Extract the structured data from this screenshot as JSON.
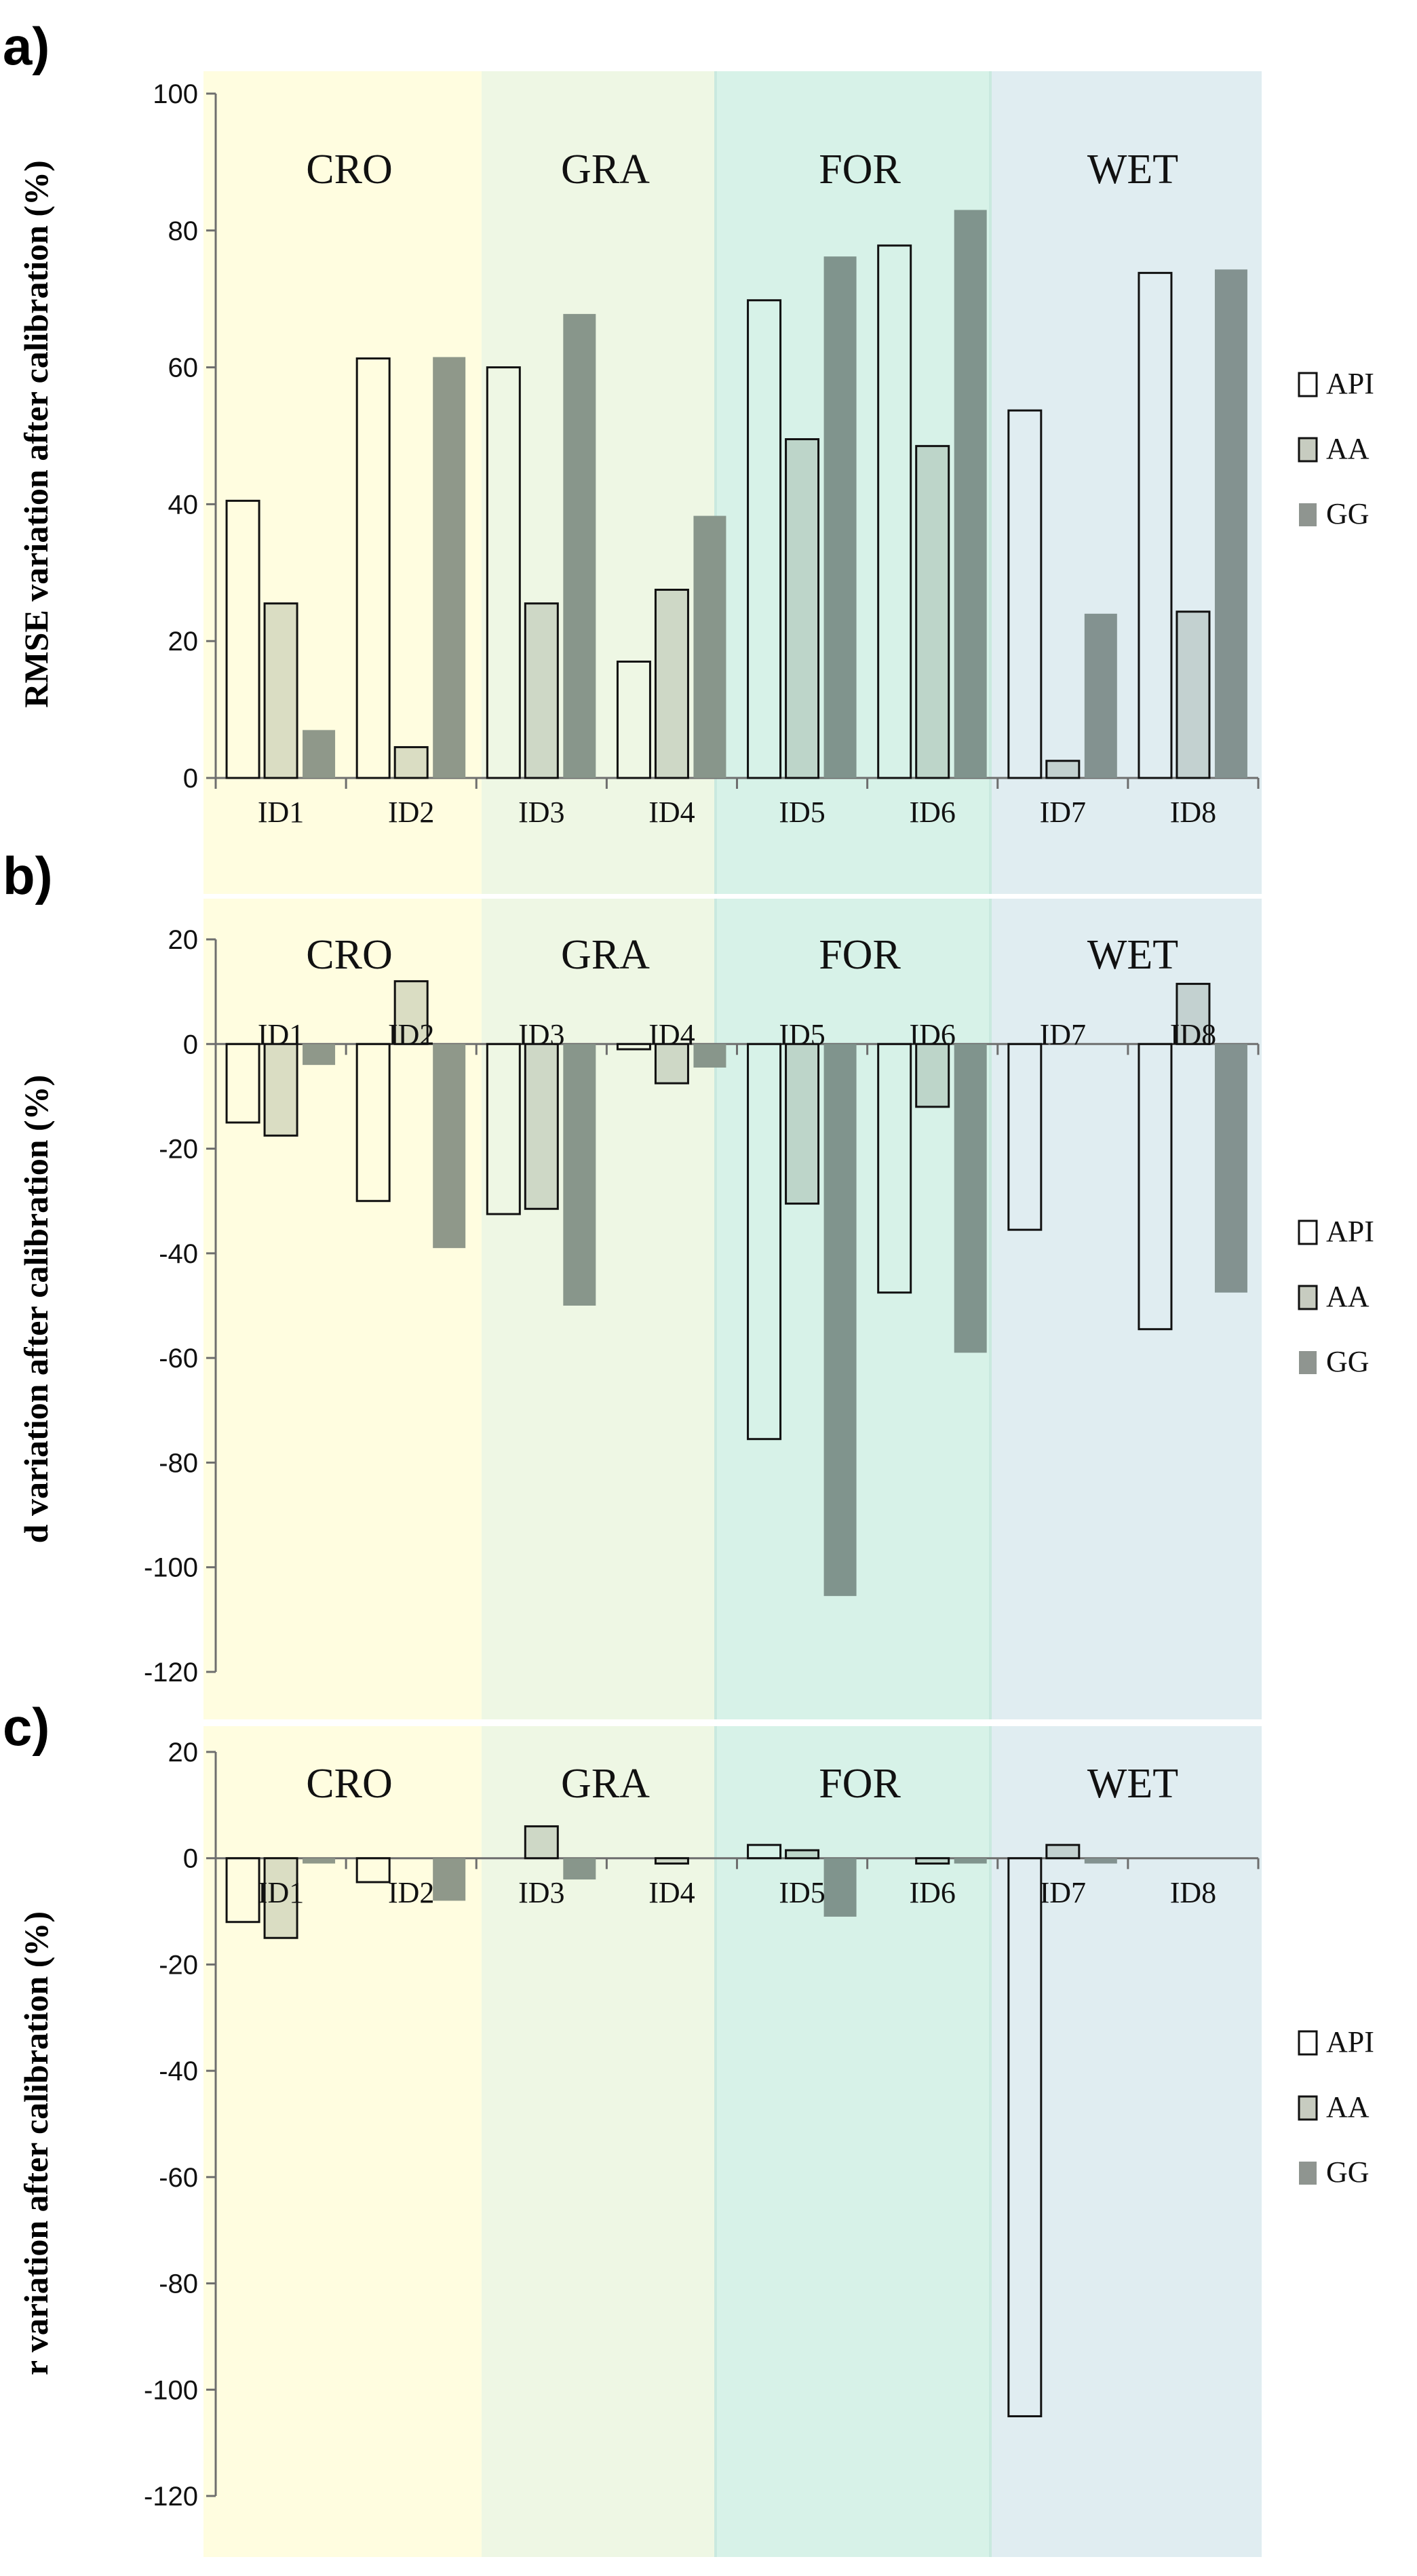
{
  "zones": [
    {
      "label": "CRO",
      "color": "#fffde0"
    },
    {
      "label": "GRA",
      "color": "#eef7e4"
    },
    {
      "label": "FOR",
      "color": "#d7f2e8"
    },
    {
      "label": "WET",
      "color": "#e0edf1"
    }
  ],
  "series_styles": [
    {
      "name": "API",
      "fill": "none",
      "stroke": "#111111"
    },
    {
      "name": "AA",
      "fill": "tint",
      "stroke": "#111111"
    },
    {
      "name": "GG",
      "fill": "shade",
      "stroke": "none"
    }
  ],
  "chart_data": [
    {
      "panel": "a)",
      "type": "bar",
      "categories": [
        "ID1",
        "ID2",
        "ID3",
        "ID4",
        "ID5",
        "ID6",
        "ID7",
        "ID8"
      ],
      "series": [
        {
          "name": "API",
          "values": [
            40.5,
            61.3,
            60.0,
            17.0,
            69.8,
            77.8,
            53.7,
            73.8
          ]
        },
        {
          "name": "AA",
          "values": [
            25.5,
            4.5,
            25.5,
            27.5,
            49.5,
            48.5,
            2.5,
            24.3
          ]
        },
        {
          "name": "GG",
          "values": [
            7.0,
            61.5,
            67.8,
            38.3,
            76.2,
            83.0,
            24.0,
            74.3
          ]
        }
      ],
      "ylabel": "RMSE variation after calibration (%)",
      "ylim": [
        0,
        100
      ],
      "yticks": [
        0,
        20,
        40,
        60,
        80,
        100
      ],
      "legend_position": "right"
    },
    {
      "panel": "b)",
      "type": "bar",
      "categories": [
        "ID1",
        "ID2",
        "ID3",
        "ID4",
        "ID5",
        "ID6",
        "ID7",
        "ID8"
      ],
      "series": [
        {
          "name": "API",
          "values": [
            -15.0,
            -30.0,
            -32.5,
            -1.0,
            -75.5,
            -47.5,
            -35.5,
            -54.5
          ]
        },
        {
          "name": "AA",
          "values": [
            -17.5,
            12.0,
            -31.5,
            -7.5,
            -30.5,
            -12.0,
            0,
            11.5
          ]
        },
        {
          "name": "GG",
          "values": [
            -4.0,
            -39.0,
            -50.0,
            -4.5,
            -105.5,
            -59.0,
            0,
            -47.5
          ]
        }
      ],
      "ylabel": "d variation after calibration (%)",
      "ylim": [
        -120,
        20
      ],
      "yticks": [
        -120,
        -100,
        -80,
        -60,
        -40,
        -20,
        0,
        20
      ],
      "legend_position": "right"
    },
    {
      "panel": "c)",
      "type": "bar",
      "categories": [
        "ID1",
        "ID2",
        "ID3",
        "ID4",
        "ID5",
        "ID6",
        "ID7",
        "ID8"
      ],
      "series": [
        {
          "name": "API",
          "values": [
            -12.0,
            -4.5,
            0,
            0,
            2.5,
            0,
            -105.0,
            0
          ]
        },
        {
          "name": "AA",
          "values": [
            -15.0,
            0,
            6.0,
            -1.0,
            1.5,
            -1.0,
            2.5,
            0
          ]
        },
        {
          "name": "GG",
          "values": [
            -1.0,
            -8.0,
            -4.0,
            0,
            -11.0,
            -1.0,
            -1.0,
            0
          ]
        }
      ],
      "ylabel": "r variation after calibration (%)",
      "ylim": [
        -120,
        20
      ],
      "yticks": [
        -120,
        -100,
        -80,
        -60,
        -40,
        -20,
        0,
        20
      ],
      "legend_position": "right"
    }
  ]
}
